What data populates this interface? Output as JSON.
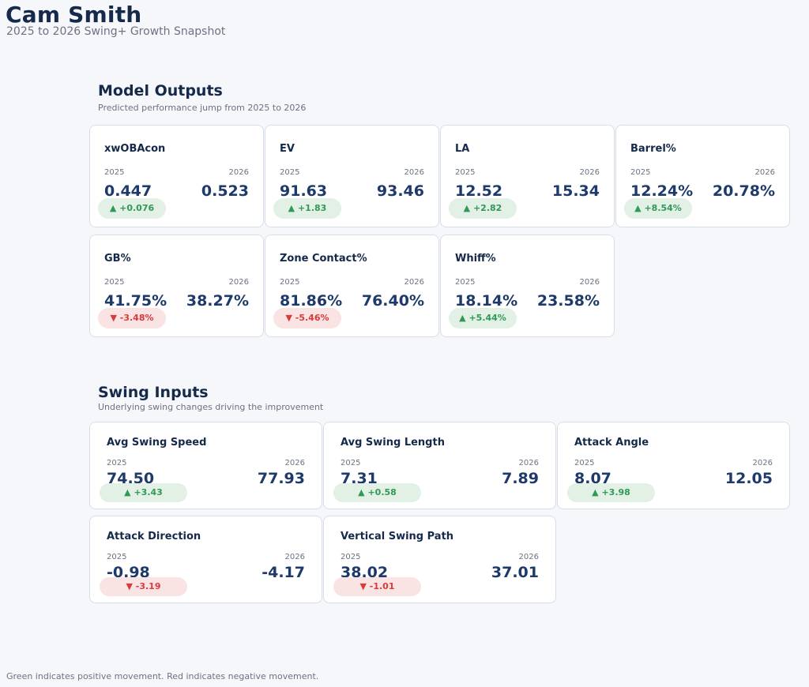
{
  "header": {
    "title": "Cam Smith",
    "subtitle": "2025 to 2026 Swing+ Growth Snapshot"
  },
  "outputs": {
    "title": "Model Outputs",
    "subtitle": "Predicted performance jump from 2025 to 2026",
    "cards": [
      {
        "name": "xwOBAcon",
        "y1": "2025",
        "y2": "2026",
        "v1": "0.447",
        "v2": "0.523",
        "delta": "▲ +0.076",
        "dir": "up"
      },
      {
        "name": "EV",
        "y1": "2025",
        "y2": "2026",
        "v1": "91.63",
        "v2": "93.46",
        "delta": "▲ +1.83",
        "dir": "up"
      },
      {
        "name": "LA",
        "y1": "2025",
        "y2": "2026",
        "v1": "12.52",
        "v2": "15.34",
        "delta": "▲ +2.82",
        "dir": "up"
      },
      {
        "name": "Barrel%",
        "y1": "2025",
        "y2": "2026",
        "v1": "12.24%",
        "v2": "20.78%",
        "delta": "▲ +8.54%",
        "dir": "up"
      },
      {
        "name": "GB%",
        "y1": "2025",
        "y2": "2026",
        "v1": "41.75%",
        "v2": "38.27%",
        "delta": "▼ -3.48%",
        "dir": "down"
      },
      {
        "name": "Zone Contact%",
        "y1": "2025",
        "y2": "2026",
        "v1": "81.86%",
        "v2": "76.40%",
        "delta": "▼ -5.46%",
        "dir": "down"
      },
      {
        "name": "Whiff%",
        "y1": "2025",
        "y2": "2026",
        "v1": "18.14%",
        "v2": "23.58%",
        "delta": "▲ +5.44%",
        "dir": "up"
      }
    ]
  },
  "inputs": {
    "title": "Swing Inputs",
    "subtitle": "Underlying swing changes driving the improvement",
    "cards": [
      {
        "name": "Avg Swing Speed",
        "y1": "2025",
        "y2": "2026",
        "v1": "74.50",
        "v2": "77.93",
        "delta": "▲ +3.43",
        "dir": "up"
      },
      {
        "name": "Avg Swing Length",
        "y1": "2025",
        "y2": "2026",
        "v1": "7.31",
        "v2": "7.89",
        "delta": "▲ +0.58",
        "dir": "up"
      },
      {
        "name": "Attack Angle",
        "y1": "2025",
        "y2": "2026",
        "v1": "8.07",
        "v2": "12.05",
        "delta": "▲ +3.98",
        "dir": "up"
      },
      {
        "name": "Attack Direction",
        "y1": "2025",
        "y2": "2026",
        "v1": "-0.98",
        "v2": "-4.17",
        "delta": "▼ -3.19",
        "dir": "down"
      },
      {
        "name": "Vertical Swing Path",
        "y1": "2025",
        "y2": "2026",
        "v1": "38.02",
        "v2": "37.01",
        "delta": "▼ -1.01",
        "dir": "down"
      }
    ]
  },
  "footer": {
    "note": "Green indicates positive movement. Red indicates negative movement."
  },
  "colors": {
    "positive": "#2f9a55",
    "negative": "#d93a3a",
    "positive_bg": "#e2f0e6",
    "negative_bg": "#f9e3e3"
  }
}
